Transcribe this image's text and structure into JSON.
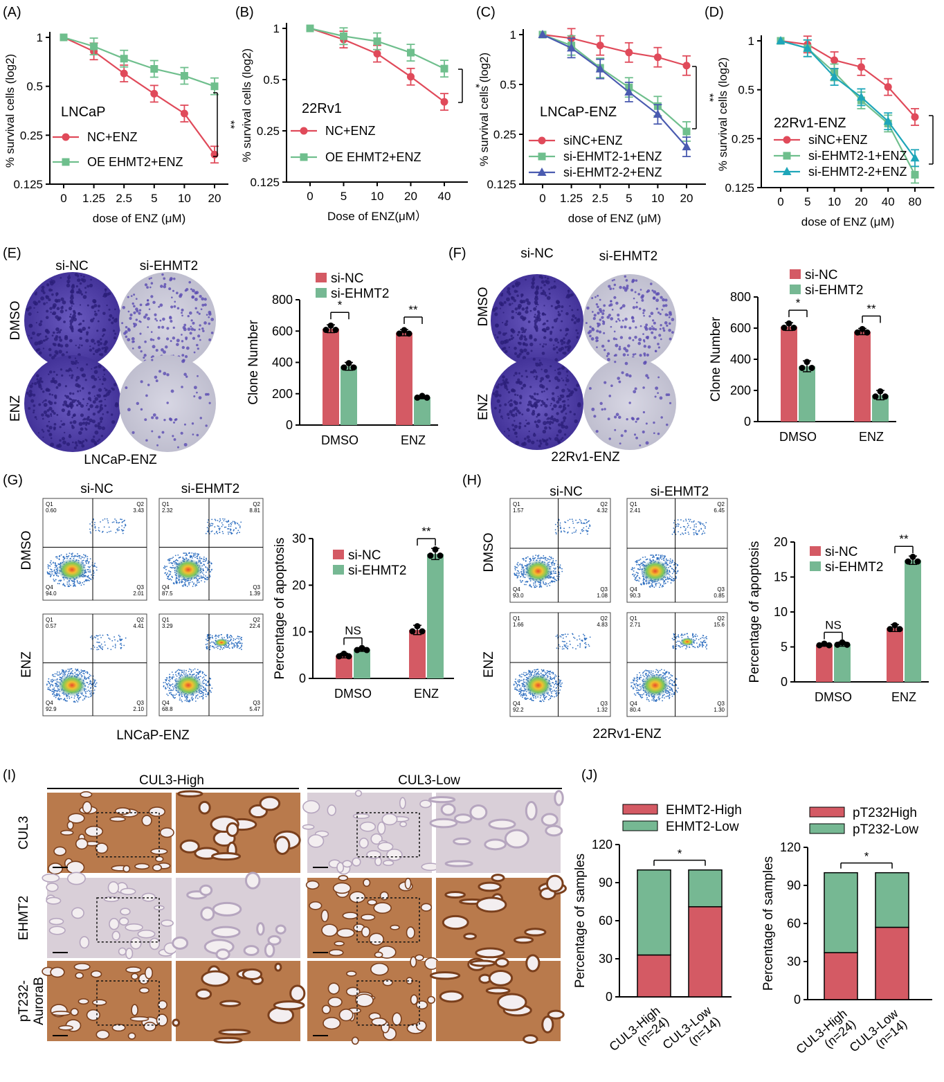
{
  "colors": {
    "red": "#e04a5a",
    "red_bar": "#d45a64",
    "green": "#6fbf8d",
    "green_bar": "#76b893",
    "blue": "#4a5bb0",
    "teal": "#1ea6b9",
    "plate": "#5a4bb2"
  },
  "panels": {
    "A": {
      "letter": "(A)",
      "cell": "LNCaP",
      "ylabel": "% survival cells (log2)",
      "xlabel": "dose of ENZ (μM)",
      "sig": "**"
    },
    "B": {
      "letter": "(B)",
      "cell": "22Rv1",
      "ylabel": "% survival cells (log2)",
      "xlabel": "Dose of ENZ(μM）",
      "sig": "*"
    },
    "C": {
      "letter": "(C)",
      "cell": "LNCaP-ENZ",
      "ylabel": "% survival cells (log2)",
      "xlabel": "dose of ENZ (μM)",
      "sig": "**"
    },
    "D": {
      "letter": "(D)",
      "cell": "22Rv1-ENZ",
      "ylabel": "% survival cells (log2)",
      "xlabel": "dose of ENZ (μM)",
      "sig": "*"
    },
    "E": {
      "letter": "(E)",
      "col1": "si-NC",
      "col2": "si-EHMT2",
      "row1": "DMSO",
      "row2": "ENZ",
      "caption": "LNCaP-ENZ",
      "ylabel": "Clone Number",
      "sig1": "*",
      "sig2": "**"
    },
    "F": {
      "letter": "(F)",
      "col1": "si-NC",
      "col2": "si-EHMT2",
      "row1": "DMSO",
      "row2": "ENZ",
      "caption": "22Rv1-ENZ",
      "ylabel": "Clone Number",
      "sig1": "*",
      "sig2": "**"
    },
    "G": {
      "letter": "(G)",
      "col1": "si-NC",
      "col2": "si-EHMT2",
      "row1": "DMSO",
      "row2": "ENZ",
      "caption": "LNCaP-ENZ",
      "ylabel": "Percentage of apoptosis",
      "sig1": "NS",
      "sig2": "**",
      "quads": [
        [
          "Q1\n0.60",
          "Q2\n3.43",
          "Q3\n2.01",
          "Q4\n94.0"
        ],
        [
          "Q1\n2.32",
          "Q2\n8.81",
          "Q3\n1.39",
          "Q4\n87.5"
        ],
        [
          "Q1\n0.57",
          "Q2\n4.41",
          "Q3\n2.10",
          "Q4\n92.9"
        ],
        [
          "Q1\n3.29",
          "Q2\n22.4",
          "Q3\n5.47",
          "Q4\n68.8"
        ]
      ]
    },
    "H": {
      "letter": "(H)",
      "col1": "si-NC",
      "col2": "si-EHMT2",
      "row1": "DMSO",
      "row2": "ENZ",
      "caption": "22Rv1-ENZ",
      "ylabel": "Percentage of apoptosis",
      "sig1": "NS",
      "sig2": "**",
      "quads": [
        [
          "Q1\n1.57",
          "Q2\n4.32",
          "Q3\n1.08",
          "Q4\n93.0"
        ],
        [
          "Q1\n2.41",
          "Q2\n6.45",
          "Q3\n0.85",
          "Q4\n90.3"
        ],
        [
          "Q1\n1.66",
          "Q2\n4.83",
          "Q3\n1.32",
          "Q4\n92.2"
        ],
        [
          "Q1\n2.71",
          "Q2\n15.6",
          "Q3\n1.30",
          "Q4\n80.4"
        ]
      ]
    },
    "I": {
      "letter": "(I)",
      "group1": "CUL3-High",
      "group2": "CUL3-Low",
      "rows": [
        "CUL3",
        "EHMT2",
        "pT232-\nAuroraB"
      ]
    },
    "J": {
      "letter": "(J)",
      "ylabel": "Percentage of samples",
      "sig": "*"
    }
  },
  "chart_data": [
    {
      "id": "A",
      "type": "line",
      "x": [
        "0",
        "1.25",
        "2.5",
        "5",
        "10",
        "20"
      ],
      "ylim": [
        0.125,
        1
      ],
      "log_y": true,
      "yticks": [
        "1",
        "0.5",
        "0.25",
        "0.125"
      ],
      "series": [
        {
          "name": "NC+ENZ",
          "color": "red",
          "marker": "circle",
          "values": [
            1,
            0.82,
            0.6,
            0.45,
            0.34,
            0.19
          ]
        },
        {
          "name": "OE EHMT2+ENZ",
          "color": "green",
          "marker": "square",
          "values": [
            1,
            0.88,
            0.74,
            0.64,
            0.58,
            0.5
          ]
        }
      ]
    },
    {
      "id": "B",
      "type": "line",
      "x": [
        "0",
        "5",
        "10",
        "20",
        "40"
      ],
      "ylim": [
        0.125,
        1
      ],
      "log_y": true,
      "yticks": [
        "1",
        "0.5",
        "0.25",
        "0.125"
      ],
      "series": [
        {
          "name": "NC+ENZ",
          "color": "red",
          "marker": "circle",
          "values": [
            1,
            0.86,
            0.71,
            0.52,
            0.37
          ]
        },
        {
          "name": "OE EHMT2+ENZ",
          "color": "green",
          "marker": "square",
          "values": [
            1,
            0.9,
            0.84,
            0.72,
            0.58
          ]
        }
      ]
    },
    {
      "id": "C",
      "type": "line",
      "x": [
        "0",
        "1.25",
        "2.5",
        "5",
        "10",
        "20"
      ],
      "ylim": [
        0.125,
        1
      ],
      "log_y": true,
      "yticks": [
        "1",
        "0.5",
        "0.25",
        "0.125"
      ],
      "series": [
        {
          "name": "siNC+ENZ",
          "color": "red",
          "marker": "circle",
          "values": [
            1,
            0.95,
            0.86,
            0.78,
            0.73,
            0.65
          ]
        },
        {
          "name": "si-EHMT2-1+ENZ",
          "color": "green",
          "marker": "square",
          "values": [
            1,
            0.86,
            0.63,
            0.48,
            0.37,
            0.26
          ]
        },
        {
          "name": "si-EHMT2-2+ENZ",
          "color": "blue",
          "marker": "triangle",
          "values": [
            1,
            0.83,
            0.62,
            0.45,
            0.33,
            0.21
          ]
        }
      ]
    },
    {
      "id": "D",
      "type": "line",
      "x": [
        "0",
        "5",
        "10",
        "20",
        "40",
        "80"
      ],
      "ylim": [
        0.125,
        1
      ],
      "log_y": true,
      "yticks": [
        "1",
        "0.5",
        "0.25",
        "0.125"
      ],
      "series": [
        {
          "name": "siNC+ENZ",
          "color": "red",
          "marker": "circle",
          "values": [
            1,
            0.95,
            0.76,
            0.69,
            0.52,
            0.34
          ]
        },
        {
          "name": "si-EHMT2-1+ENZ",
          "color": "green",
          "marker": "square",
          "values": [
            1,
            0.9,
            0.64,
            0.43,
            0.31,
            0.15
          ]
        },
        {
          "name": "si-EHMT2-2+ENZ",
          "color": "teal",
          "marker": "triangle",
          "values": [
            1,
            0.9,
            0.6,
            0.45,
            0.32,
            0.19
          ]
        }
      ]
    },
    {
      "id": "E",
      "type": "bar",
      "categories": [
        "DMSO",
        "ENZ"
      ],
      "ylim": [
        0,
        800
      ],
      "yticks": [
        0,
        200,
        400,
        600,
        800
      ],
      "series": [
        {
          "name": "si-NC",
          "color": "red_bar",
          "values": [
            615,
            590
          ],
          "err": [
            25,
            20
          ]
        },
        {
          "name": "si-EHMT2",
          "color": "green_bar",
          "values": [
            375,
            178
          ],
          "err": [
            25,
            10
          ]
        }
      ]
    },
    {
      "id": "F",
      "type": "bar",
      "categories": [
        "DMSO",
        "ENZ"
      ],
      "ylim": [
        0,
        800
      ],
      "yticks": [
        0,
        200,
        400,
        600,
        800
      ],
      "series": [
        {
          "name": "si-NC",
          "color": "red_bar",
          "values": [
            610,
            578
          ],
          "err": [
            25,
            20
          ]
        },
        {
          "name": "si-EHMT2",
          "color": "green_bar",
          "values": [
            355,
            170
          ],
          "err": [
            35,
            30
          ]
        }
      ]
    },
    {
      "id": "G",
      "type": "bar",
      "categories": [
        "DMSO",
        "ENZ"
      ],
      "ylim": [
        0,
        30
      ],
      "yticks": [
        0,
        10,
        20,
        30
      ],
      "series": [
        {
          "name": "si-NC",
          "color": "red_bar",
          "values": [
            4.9,
            10.4
          ],
          "err": [
            0.5,
            1.0
          ]
        },
        {
          "name": "si-EHMT2",
          "color": "green_bar",
          "values": [
            6.2,
            26.7
          ],
          "err": [
            0.4,
            1.2
          ]
        }
      ]
    },
    {
      "id": "H",
      "type": "bar",
      "categories": [
        "DMSO",
        "ENZ"
      ],
      "ylim": [
        0,
        20
      ],
      "yticks": [
        0,
        5,
        10,
        15,
        20
      ],
      "series": [
        {
          "name": "si-NC",
          "color": "red_bar",
          "values": [
            5.3,
            7.7
          ],
          "err": [
            0.2,
            0.5
          ]
        },
        {
          "name": "si-EHMT2",
          "color": "green_bar",
          "values": [
            5.4,
            17.4
          ],
          "err": [
            0.3,
            0.6
          ]
        }
      ]
    },
    {
      "id": "J1",
      "type": "bar",
      "stacked": true,
      "categories": [
        "CUL3-High\n(n=24)",
        "CUL3-Low\n(n=14)"
      ],
      "ylim": [
        0,
        120
      ],
      "yticks": [
        0,
        30,
        60,
        90,
        120
      ],
      "series": [
        {
          "name": "EHMT2-High",
          "color": "red_bar",
          "values": [
            33,
            71
          ]
        },
        {
          "name": "EHMT2-Low",
          "color": "green_bar",
          "values": [
            67,
            29
          ]
        }
      ]
    },
    {
      "id": "J2",
      "type": "bar",
      "stacked": true,
      "categories": [
        "CUL3-High\n(n=24)",
        "CUL3-Low\n(n=14)"
      ],
      "ylim": [
        0,
        120
      ],
      "yticks": [
        0,
        30,
        60,
        90,
        120
      ],
      "series": [
        {
          "name": "pT232High",
          "color": "red_bar",
          "values": [
            37,
            57
          ]
        },
        {
          "name": "pT232-Low",
          "color": "green_bar",
          "values": [
            63,
            43
          ]
        }
      ]
    }
  ]
}
